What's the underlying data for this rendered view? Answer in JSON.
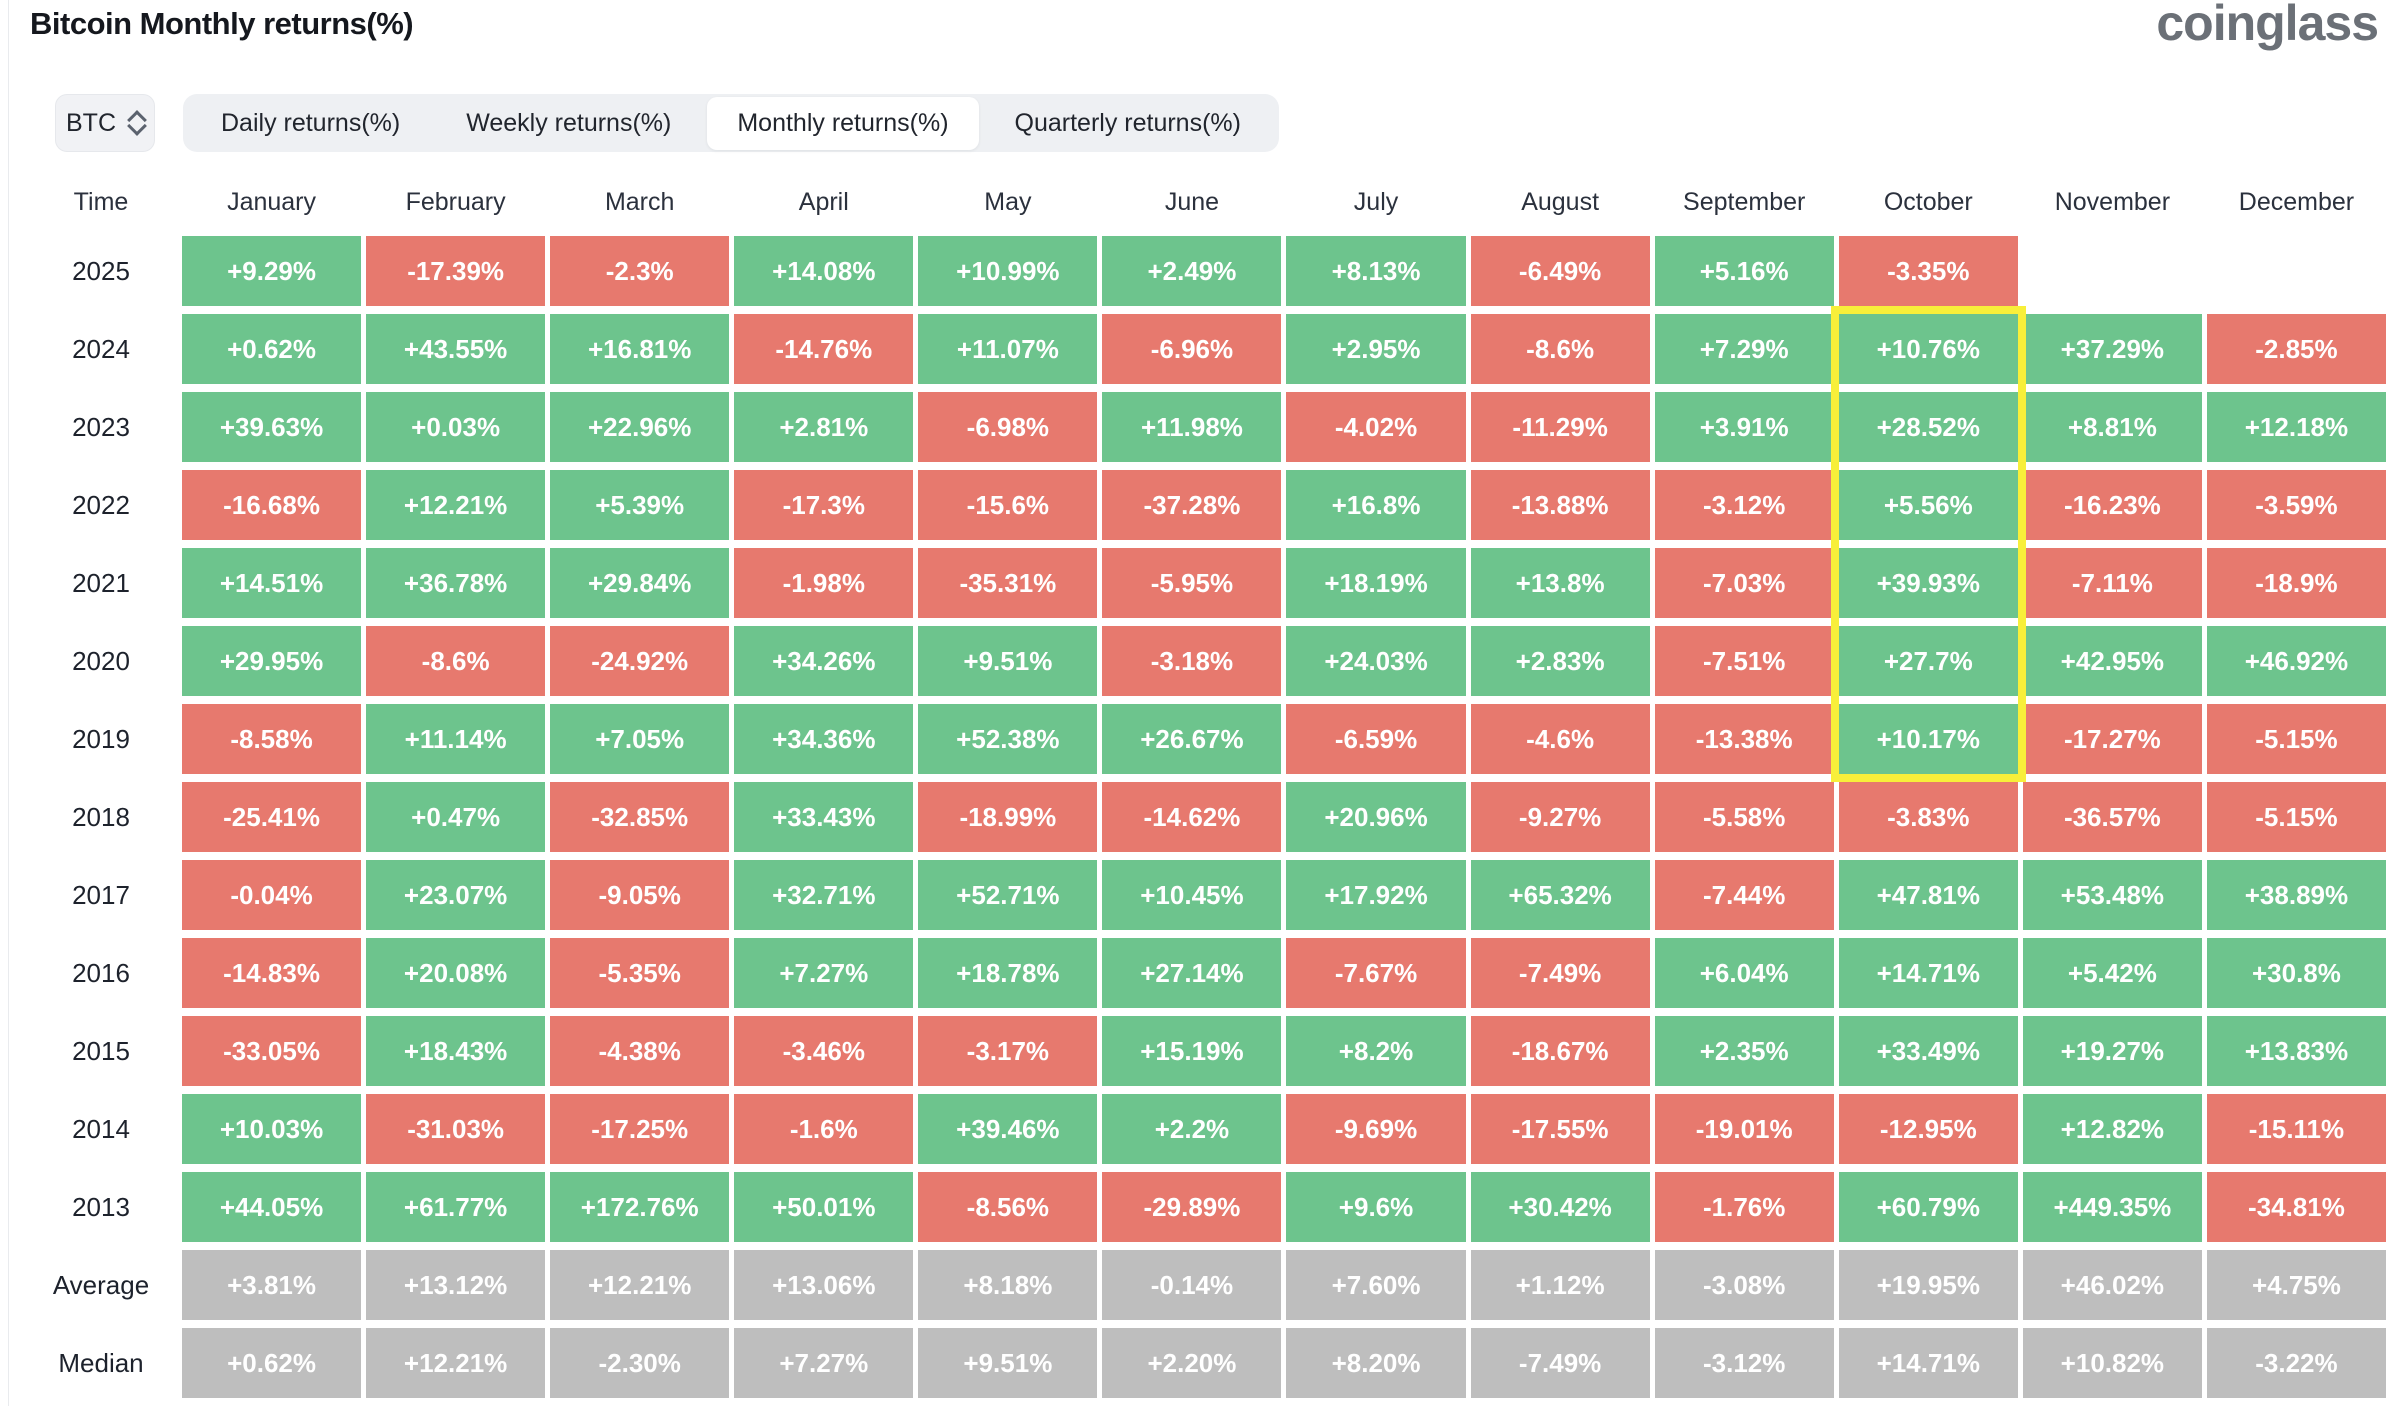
{
  "header": {
    "title": "Bitcoin Monthly returns(%)",
    "logo": "coinglass"
  },
  "controls": {
    "symbol": "BTC",
    "tabs": [
      {
        "label": "Daily returns(%)",
        "active": false
      },
      {
        "label": "Weekly returns(%)",
        "active": false
      },
      {
        "label": "Monthly returns(%)",
        "active": true
      },
      {
        "label": "Quarterly returns(%)",
        "active": false
      }
    ]
  },
  "chart_data": {
    "type": "heatmap",
    "title": "Bitcoin Monthly returns(%)",
    "row_header": "Time",
    "columns": [
      "January",
      "February",
      "March",
      "April",
      "May",
      "June",
      "July",
      "August",
      "September",
      "October",
      "November",
      "December"
    ],
    "rows": [
      {
        "label": "2025",
        "summary": false,
        "values": [
          "+9.29%",
          "-17.39%",
          "-2.3%",
          "+14.08%",
          "+10.99%",
          "+2.49%",
          "+8.13%",
          "-6.49%",
          "+5.16%",
          "-3.35%",
          "",
          ""
        ]
      },
      {
        "label": "2024",
        "summary": false,
        "values": [
          "+0.62%",
          "+43.55%",
          "+16.81%",
          "-14.76%",
          "+11.07%",
          "-6.96%",
          "+2.95%",
          "-8.6%",
          "+7.29%",
          "+10.76%",
          "+37.29%",
          "-2.85%"
        ]
      },
      {
        "label": "2023",
        "summary": false,
        "values": [
          "+39.63%",
          "+0.03%",
          "+22.96%",
          "+2.81%",
          "-6.98%",
          "+11.98%",
          "-4.02%",
          "-11.29%",
          "+3.91%",
          "+28.52%",
          "+8.81%",
          "+12.18%"
        ]
      },
      {
        "label": "2022",
        "summary": false,
        "values": [
          "-16.68%",
          "+12.21%",
          "+5.39%",
          "-17.3%",
          "-15.6%",
          "-37.28%",
          "+16.8%",
          "-13.88%",
          "-3.12%",
          "+5.56%",
          "-16.23%",
          "-3.59%"
        ]
      },
      {
        "label": "2021",
        "summary": false,
        "values": [
          "+14.51%",
          "+36.78%",
          "+29.84%",
          "-1.98%",
          "-35.31%",
          "-5.95%",
          "+18.19%",
          "+13.8%",
          "-7.03%",
          "+39.93%",
          "-7.11%",
          "-18.9%"
        ]
      },
      {
        "label": "2020",
        "summary": false,
        "values": [
          "+29.95%",
          "-8.6%",
          "-24.92%",
          "+34.26%",
          "+9.51%",
          "-3.18%",
          "+24.03%",
          "+2.83%",
          "-7.51%",
          "+27.7%",
          "+42.95%",
          "+46.92%"
        ]
      },
      {
        "label": "2019",
        "summary": false,
        "values": [
          "-8.58%",
          "+11.14%",
          "+7.05%",
          "+34.36%",
          "+52.38%",
          "+26.67%",
          "-6.59%",
          "-4.6%",
          "-13.38%",
          "+10.17%",
          "-17.27%",
          "-5.15%"
        ]
      },
      {
        "label": "2018",
        "summary": false,
        "values": [
          "-25.41%",
          "+0.47%",
          "-32.85%",
          "+33.43%",
          "-18.99%",
          "-14.62%",
          "+20.96%",
          "-9.27%",
          "-5.58%",
          "-3.83%",
          "-36.57%",
          "-5.15%"
        ]
      },
      {
        "label": "2017",
        "summary": false,
        "values": [
          "-0.04%",
          "+23.07%",
          "-9.05%",
          "+32.71%",
          "+52.71%",
          "+10.45%",
          "+17.92%",
          "+65.32%",
          "-7.44%",
          "+47.81%",
          "+53.48%",
          "+38.89%"
        ]
      },
      {
        "label": "2016",
        "summary": false,
        "values": [
          "-14.83%",
          "+20.08%",
          "-5.35%",
          "+7.27%",
          "+18.78%",
          "+27.14%",
          "-7.67%",
          "-7.49%",
          "+6.04%",
          "+14.71%",
          "+5.42%",
          "+30.8%"
        ]
      },
      {
        "label": "2015",
        "summary": false,
        "values": [
          "-33.05%",
          "+18.43%",
          "-4.38%",
          "-3.46%",
          "-3.17%",
          "+15.19%",
          "+8.2%",
          "-18.67%",
          "+2.35%",
          "+33.49%",
          "+19.27%",
          "+13.83%"
        ]
      },
      {
        "label": "2014",
        "summary": false,
        "values": [
          "+10.03%",
          "-31.03%",
          "-17.25%",
          "-1.6%",
          "+39.46%",
          "+2.2%",
          "-9.69%",
          "-17.55%",
          "-19.01%",
          "-12.95%",
          "+12.82%",
          "-15.11%"
        ]
      },
      {
        "label": "2013",
        "summary": false,
        "values": [
          "+44.05%",
          "+61.77%",
          "+172.76%",
          "+50.01%",
          "-8.56%",
          "-29.89%",
          "+9.6%",
          "+30.42%",
          "-1.76%",
          "+60.79%",
          "+449.35%",
          "-34.81%"
        ]
      },
      {
        "label": "Average",
        "summary": true,
        "values": [
          "+3.81%",
          "+13.12%",
          "+12.21%",
          "+13.06%",
          "+8.18%",
          "-0.14%",
          "+7.60%",
          "+1.12%",
          "-3.08%",
          "+19.95%",
          "+46.02%",
          "+4.75%"
        ]
      },
      {
        "label": "Median",
        "summary": true,
        "values": [
          "+0.62%",
          "+12.21%",
          "-2.30%",
          "+7.27%",
          "+9.51%",
          "+2.20%",
          "+8.20%",
          "-7.49%",
          "-3.12%",
          "+14.71%",
          "+10.82%",
          "-3.22%"
        ]
      }
    ],
    "colors": {
      "positive": "#6dc48d",
      "negative": "#e7796e",
      "summary": "#bebebe",
      "highlight": "#f8ef3a"
    },
    "highlight": {
      "column": "October",
      "column_index": 9,
      "start_row": "2024",
      "end_row": "2019"
    }
  }
}
